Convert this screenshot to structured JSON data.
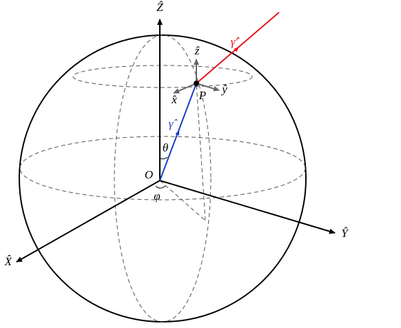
{
  "labels": {
    "Z_axis": "Ẑ",
    "X_axis": "X̂",
    "Y_axis": "Ŷ",
    "origin": "O",
    "point": "P",
    "theta": "θ",
    "phi": "φ",
    "gamma": "γ̂",
    "gamma_prime": "γ̂′",
    "local_z": "ẑ",
    "local_x": "x̂",
    "local_y": "ŷ"
  }
}
